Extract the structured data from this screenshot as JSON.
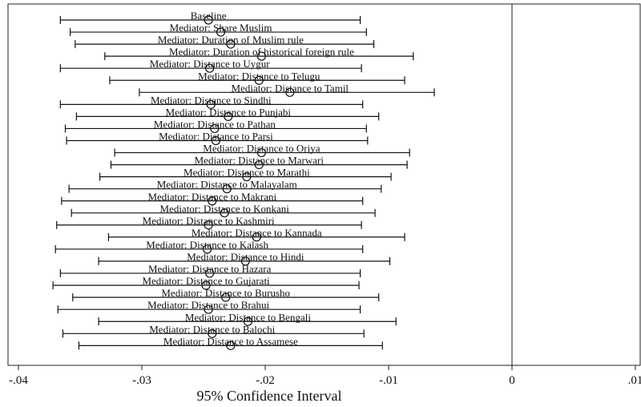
{
  "chart_data": {
    "type": "coefficient-plot",
    "xlabel": "95% Confidence Interval",
    "xlim": [
      -0.04,
      0.01
    ],
    "xticks": [
      {
        "value": -0.04,
        "label": "-.04"
      },
      {
        "value": -0.03,
        "label": "-.03"
      },
      {
        "value": -0.02,
        "label": "-.02"
      },
      {
        "value": -0.01,
        "label": "-.01"
      },
      {
        "value": 0,
        "label": "0"
      },
      {
        "value": 0.01,
        "label": ".01"
      }
    ],
    "reference_line": 0,
    "grid": false,
    "marker": "hollow-circle",
    "series": [
      {
        "label": "Baseline",
        "estimate": -0.0246,
        "lower": -0.0366,
        "upper": -0.0123
      },
      {
        "label": "Mediator: Share Muslim",
        "estimate": -0.0236,
        "lower": -0.0358,
        "upper": -0.0118
      },
      {
        "label": "Mediator: Duration of Muslim rule",
        "estimate": -0.0228,
        "lower": -0.0354,
        "upper": -0.0112
      },
      {
        "label": "Mediator: Duration of historical foreign rule",
        "estimate": -0.0203,
        "lower": -0.033,
        "upper": -0.008
      },
      {
        "label": "Mediator: Distance to Uygur",
        "estimate": -0.0245,
        "lower": -0.0366,
        "upper": -0.0122
      },
      {
        "label": "Mediator: Distance to Telugu",
        "estimate": -0.0205,
        "lower": -0.0326,
        "upper": -0.0087
      },
      {
        "label": "Mediator: Distance to Tamil",
        "estimate": -0.018,
        "lower": -0.0302,
        "upper": -0.0063
      },
      {
        "label": "Mediator: Distance to Sindhi",
        "estimate": -0.0244,
        "lower": -0.0366,
        "upper": -0.0121
      },
      {
        "label": "Mediator: Distance to Punjabi",
        "estimate": -0.023,
        "lower": -0.0353,
        "upper": -0.0108
      },
      {
        "label": "Mediator: Distance to Pathan",
        "estimate": -0.0241,
        "lower": -0.0362,
        "upper": -0.0118
      },
      {
        "label": "Mediator: Distance to Parsi",
        "estimate": -0.024,
        "lower": -0.0361,
        "upper": -0.0117
      },
      {
        "label": "Mediator: Distance to Oriya",
        "estimate": -0.0203,
        "lower": -0.0322,
        "upper": -0.0083
      },
      {
        "label": "Mediator: Distance to Marwari",
        "estimate": -0.0205,
        "lower": -0.0325,
        "upper": -0.0085
      },
      {
        "label": "Mediator: Distance to Marathi",
        "estimate": -0.0215,
        "lower": -0.0334,
        "upper": -0.0098
      },
      {
        "label": "Mediator: Distance to Malayalam",
        "estimate": -0.0231,
        "lower": -0.0359,
        "upper": -0.0106
      },
      {
        "label": "Mediator: Distance to Makrani",
        "estimate": -0.0243,
        "lower": -0.0365,
        "upper": -0.0121
      },
      {
        "label": "Mediator: Distance to Konkani",
        "estimate": -0.0233,
        "lower": -0.0357,
        "upper": -0.0111
      },
      {
        "label": "Mediator: Distance to Kashmiri",
        "estimate": -0.0246,
        "lower": -0.0369,
        "upper": -0.0122
      },
      {
        "label": "Mediator: Distance to Kannada",
        "estimate": -0.0207,
        "lower": -0.0327,
        "upper": -0.0087
      },
      {
        "label": "Mediator: Distance to Kalash",
        "estimate": -0.0247,
        "lower": -0.037,
        "upper": -0.0121
      },
      {
        "label": "Mediator: Distance to Hindi",
        "estimate": -0.0216,
        "lower": -0.0335,
        "upper": -0.0099
      },
      {
        "label": "Mediator: Distance to Hazara",
        "estimate": -0.0245,
        "lower": -0.0366,
        "upper": -0.0123
      },
      {
        "label": "Mediator: Distance to Gujarati",
        "estimate": -0.0248,
        "lower": -0.0372,
        "upper": -0.0124
      },
      {
        "label": "Mediator: Distance to Burusho",
        "estimate": -0.0232,
        "lower": -0.0356,
        "upper": -0.0108
      },
      {
        "label": "Mediator: Distance to Brahui",
        "estimate": -0.0246,
        "lower": -0.0368,
        "upper": -0.0123
      },
      {
        "label": "Mediator: Distance to Bengali",
        "estimate": -0.0214,
        "lower": -0.0335,
        "upper": -0.0094
      },
      {
        "label": "Mediator: Distance to Balochi",
        "estimate": -0.0243,
        "lower": -0.0364,
        "upper": -0.012
      },
      {
        "label": "Mediator: Distance to Assamese",
        "estimate": -0.0228,
        "lower": -0.0351,
        "upper": -0.0105
      }
    ]
  }
}
